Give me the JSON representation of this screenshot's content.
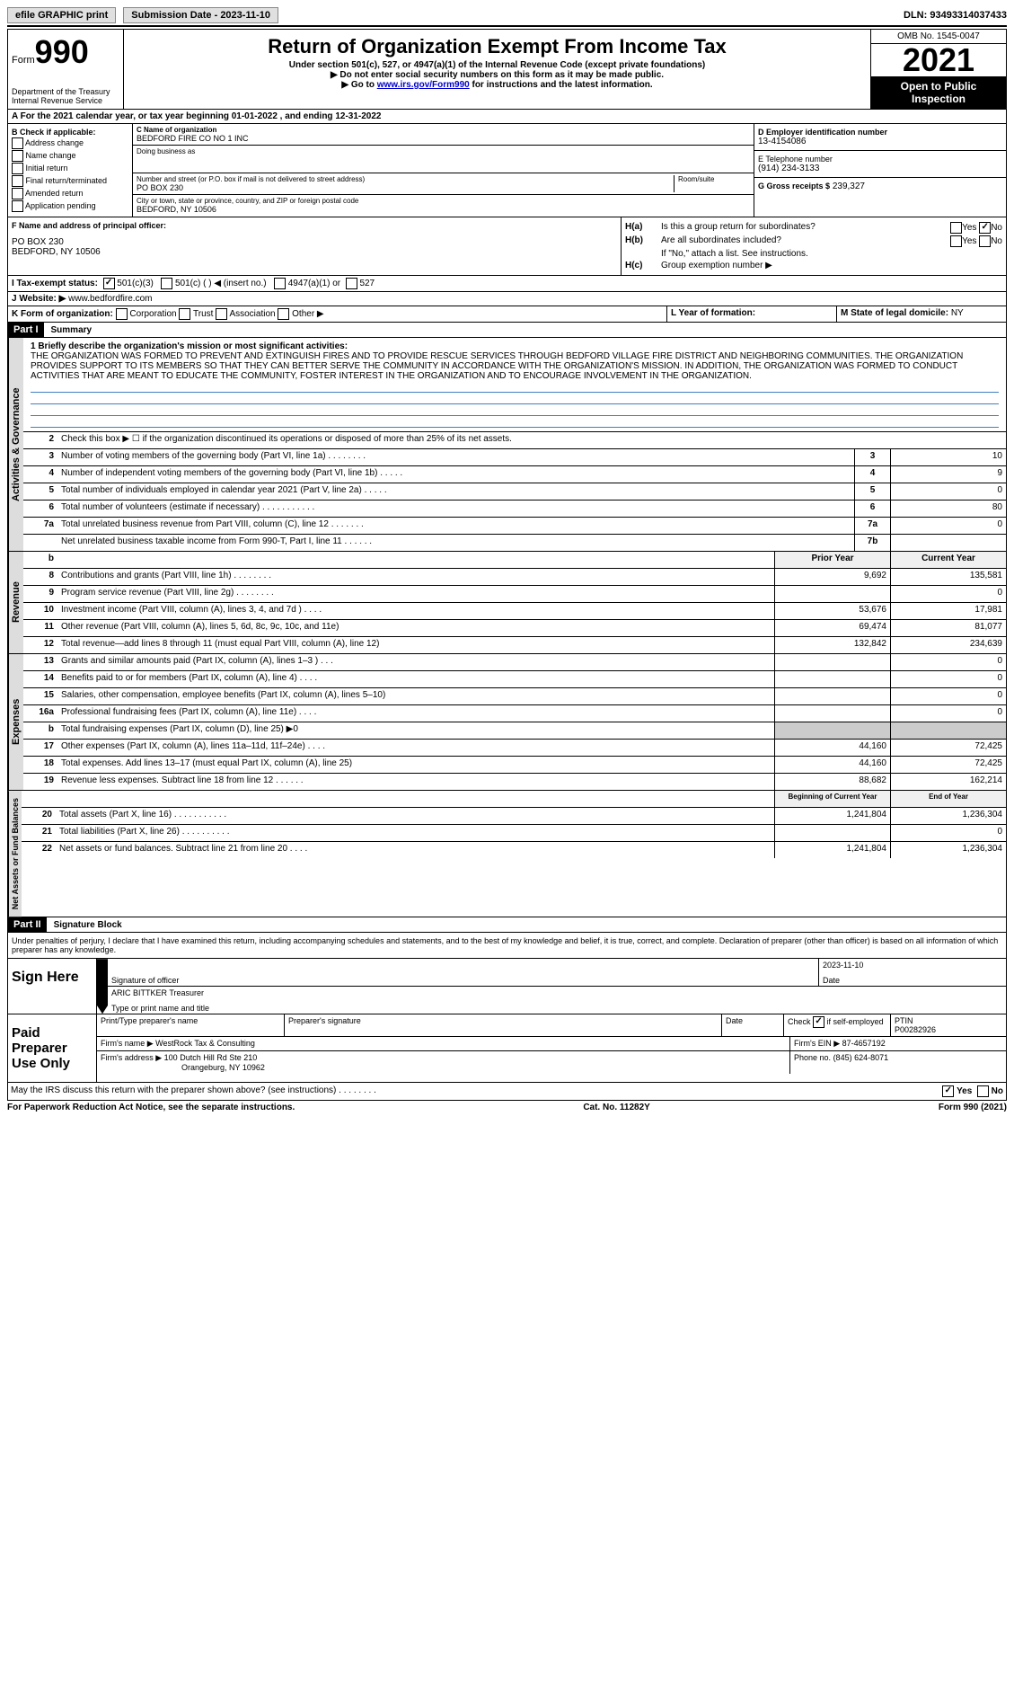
{
  "top": {
    "efile": "efile GRAPHIC print",
    "submission_label": "Submission Date - 2023-11-10",
    "dln": "DLN: 93493314037433"
  },
  "header": {
    "form_prefix": "Form",
    "form_no": "990",
    "title": "Return of Organization Exempt From Income Tax",
    "subtitle": "Under section 501(c), 527, or 4947(a)(1) of the Internal Revenue Code (except private foundations)",
    "line2": "▶ Do not enter social security numbers on this form as it may be made public.",
    "line3_pre": "▶ Go to ",
    "line3_link": "www.irs.gov/Form990",
    "line3_post": " for instructions and the latest information.",
    "dept": "Department of the Treasury",
    "irs": "Internal Revenue Service",
    "omb": "OMB No. 1545-0047",
    "year": "2021",
    "open": "Open to Public Inspection"
  },
  "a_line": "A For the 2021 calendar year, or tax year beginning 01-01-2022  , and ending 12-31-2022",
  "b": {
    "title": "B Check if applicable:",
    "opts": [
      "Address change",
      "Name change",
      "Initial return",
      "Final return/terminated",
      "Amended return",
      "Application pending"
    ]
  },
  "c": {
    "label": "C Name of organization",
    "name": "BEDFORD FIRE CO NO 1 INC",
    "dba_label": "Doing business as",
    "street_label": "Number and street (or P.O. box if mail is not delivered to street address)",
    "room_label": "Room/suite",
    "street": "PO BOX 230",
    "city_label": "City or town, state or province, country, and ZIP or foreign postal code",
    "city": "BEDFORD, NY  10506"
  },
  "d": {
    "label": "D Employer identification number",
    "value": "13-4154086"
  },
  "e": {
    "label": "E Telephone number",
    "value": "(914) 234-3133"
  },
  "g": {
    "label": "G Gross receipts $",
    "value": "239,327"
  },
  "f": {
    "label": "F  Name and address of principal officer:",
    "line1": "PO BOX 230",
    "line2": "BEDFORD, NY  10506"
  },
  "h": {
    "a_label": "Is this a group return for subordinates?",
    "a_pre": "H(a)",
    "b_pre": "H(b)",
    "b_label": "Are all subordinates included?",
    "attach": "If \"No,\" attach a list. See instructions.",
    "c_pre": "H(c)",
    "c_label": "Group exemption number ▶",
    "yes": "Yes",
    "no": "No"
  },
  "i": {
    "label": "I   Tax-exempt status:",
    "o1": "501(c)(3)",
    "o2": "501(c) (  ) ◀ (insert no.)",
    "o3": "4947(a)(1) or",
    "o4": "527"
  },
  "j": {
    "label": "J   Website: ▶",
    "value": "www.bedfordfire.com"
  },
  "k": {
    "label": "K Form of organization:",
    "o1": "Corporation",
    "o2": "Trust",
    "o3": "Association",
    "o4": "Other ▶"
  },
  "l": {
    "label": "L Year of formation:"
  },
  "m": {
    "label": "M State of legal domicile:",
    "value": "NY"
  },
  "part1": {
    "tag": "Part I",
    "title": "Summary"
  },
  "mission": {
    "label": "1   Briefly describe the organization's mission or most significant activities:",
    "text": "THE ORGANIZATION WAS FORMED TO PREVENT AND EXTINGUISH FIRES AND TO PROVIDE RESCUE SERVICES THROUGH BEDFORD VILLAGE FIRE DISTRICT AND NEIGHBORING COMMUNITIES. THE ORGANIZATION PROVIDES SUPPORT TO ITS MEMBERS SO THAT THEY CAN BETTER SERVE THE COMMUNITY IN ACCORDANCE WITH THE ORGANIZATION'S MISSION. IN ADDITION, THE ORGANIZATION WAS FORMED TO CONDUCT ACTIVITIES THAT ARE MEANT TO EDUCATE THE COMMUNITY, FOSTER INTEREST IN THE ORGANIZATION AND TO ENCOURAGE INVOLVEMENT IN THE ORGANIZATION."
  },
  "lines_single": [
    {
      "n": "2",
      "d": "Check this box ▶ ☐ if the organization discontinued its operations or disposed of more than 25% of its net assets."
    },
    {
      "n": "3",
      "d": "Number of voting members of the governing body (Part VI, line 1a)   .    .    .    .    .    .    .    .",
      "b": "3",
      "v": "10"
    },
    {
      "n": "4",
      "d": "Number of independent voting members of the governing body (Part VI, line 1b)   .    .    .    .    .",
      "b": "4",
      "v": "9"
    },
    {
      "n": "5",
      "d": "Total number of individuals employed in calendar year 2021 (Part V, line 2a)   .    .    .    .    .",
      "b": "5",
      "v": "0"
    },
    {
      "n": "6",
      "d": "Total number of volunteers (estimate if necessary)   .    .    .    .    .    .    .    .    .    .    .",
      "b": "6",
      "v": "80"
    },
    {
      "n": "7a",
      "d": "Total unrelated business revenue from Part VIII, column (C), line 12   .    .    .    .    .    .    .",
      "b": "7a",
      "v": "0"
    },
    {
      "n": "",
      "d": "Net unrelated business taxable income from Form 990-T, Part I, line 11   .    .    .    .    .    .",
      "b": "7b",
      "v": ""
    }
  ],
  "two_col_head": {
    "prior": "Prior Year",
    "current": "Current Year"
  },
  "revenue": [
    {
      "n": "8",
      "d": "Contributions and grants (Part VIII, line 1h)   .    .    .    .    .    .    .    .",
      "p": "9,692",
      "c": "135,581"
    },
    {
      "n": "9",
      "d": "Program service revenue (Part VIII, line 2g)   .    .    .    .    .    .    .    .",
      "p": "",
      "c": "0"
    },
    {
      "n": "10",
      "d": "Investment income (Part VIII, column (A), lines 3, 4, and 7d )   .    .    .    .",
      "p": "53,676",
      "c": "17,981"
    },
    {
      "n": "11",
      "d": "Other revenue (Part VIII, column (A), lines 5, 6d, 8c, 9c, 10c, and 11e)",
      "p": "69,474",
      "c": "81,077"
    },
    {
      "n": "12",
      "d": "Total revenue—add lines 8 through 11 (must equal Part VIII, column (A), line 12)",
      "p": "132,842",
      "c": "234,639"
    }
  ],
  "expenses": [
    {
      "n": "13",
      "d": "Grants and similar amounts paid (Part IX, column (A), lines 1–3 )   .    .    .",
      "p": "",
      "c": "0"
    },
    {
      "n": "14",
      "d": "Benefits paid to or for members (Part IX, column (A), line 4)   .    .    .    .",
      "p": "",
      "c": "0"
    },
    {
      "n": "15",
      "d": "Salaries, other compensation, employee benefits (Part IX, column (A), lines 5–10)",
      "p": "",
      "c": "0"
    },
    {
      "n": "16a",
      "d": "Professional fundraising fees (Part IX, column (A), line 11e)   .    .    .    .",
      "p": "",
      "c": "0"
    },
    {
      "n": "b",
      "d": "Total fundraising expenses (Part IX, column (D), line 25) ▶0",
      "p": "SHADE",
      "c": "SHADE"
    },
    {
      "n": "17",
      "d": "Other expenses (Part IX, column (A), lines 11a–11d, 11f–24e)   .    .    .    .",
      "p": "44,160",
      "c": "72,425"
    },
    {
      "n": "18",
      "d": "Total expenses. Add lines 13–17 (must equal Part IX, column (A), line 25)",
      "p": "44,160",
      "c": "72,425"
    },
    {
      "n": "19",
      "d": "Revenue less expenses. Subtract line 18 from line 12   .    .    .    .    .    .",
      "p": "88,682",
      "c": "162,214"
    }
  ],
  "net_head": {
    "prior": "Beginning of Current Year",
    "current": "End of Year"
  },
  "netassets": [
    {
      "n": "20",
      "d": "Total assets (Part X, line 16)   .    .    .    .    .    .    .    .    .    .    .",
      "p": "1,241,804",
      "c": "1,236,304"
    },
    {
      "n": "21",
      "d": "Total liabilities (Part X, line 26)   .    .    .    .    .    .    .    .    .    .",
      "p": "",
      "c": "0"
    },
    {
      "n": "22",
      "d": "Net assets or fund balances. Subtract line 21 from line 20   .    .    .    .",
      "p": "1,241,804",
      "c": "1,236,304"
    }
  ],
  "vtabs": {
    "gov": "Activities & Governance",
    "rev": "Revenue",
    "exp": "Expenses",
    "net": "Net Assets or Fund Balances"
  },
  "part2": {
    "tag": "Part II",
    "title": "Signature Block"
  },
  "penalties": "Under penalties of perjury, I declare that I have examined this return, including accompanying schedules and statements, and to the best of my knowledge and belief, it is true, correct, and complete. Declaration of preparer (other than officer) is based on all information of which preparer has any knowledge.",
  "sign": {
    "here": "Sign Here",
    "sig_officer": "Signature of officer",
    "date": "Date",
    "date_val": "2023-11-10",
    "name": "ARIC BITTKER Treasurer",
    "type_label": "Type or print name and title"
  },
  "paid": {
    "title": "Paid Preparer Use Only",
    "c1": "Print/Type preparer's name",
    "c2": "Preparer's signature",
    "c3": "Date",
    "c4_pre": "Check",
    "c4_post": "if self-employed",
    "c5": "PTIN",
    "ptin": "P00282926",
    "firm_name_l": "Firm's name      ▶",
    "firm_name": "WestRock Tax & Consulting",
    "firm_ein_l": "Firm's EIN ▶",
    "firm_ein": "87-4657192",
    "firm_addr_l": "Firm's address ▶",
    "firm_addr": "100 Dutch Hill Rd Ste 210",
    "firm_city": "Orangeburg, NY  10962",
    "phone_l": "Phone no.",
    "phone": "(845) 624-8071"
  },
  "discuss": {
    "text": "May the IRS discuss this return with the preparer shown above? (see instructions)   .    .    .    .    .    .    .    .",
    "yes": "Yes",
    "no": "No"
  },
  "footer": {
    "left": "For Paperwork Reduction Act Notice, see the separate instructions.",
    "mid": "Cat. No. 11282Y",
    "right": "Form 990 (2021)"
  }
}
